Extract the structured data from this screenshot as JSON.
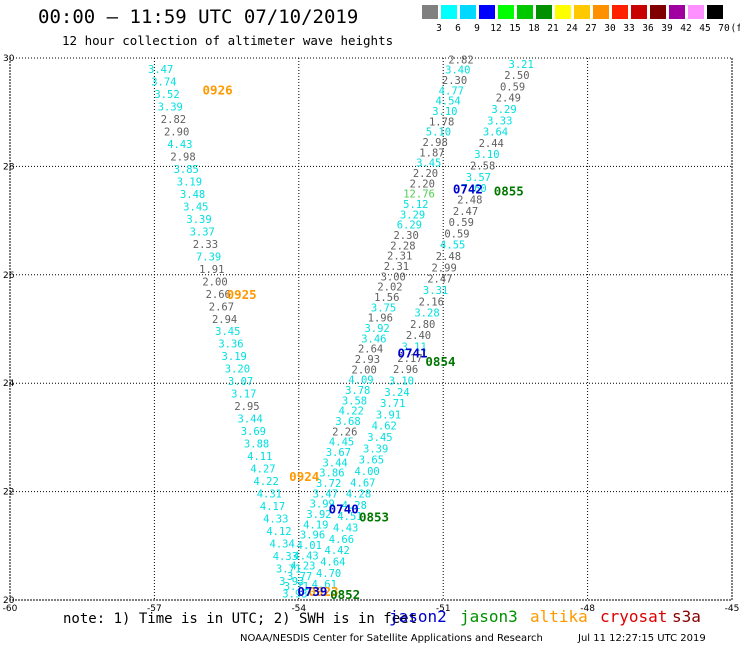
{
  "header": {
    "title": "00:00 – 11:59 UTC 07/10/2019",
    "subtitle": "12 hour collection of altimeter wave heights"
  },
  "scale": {
    "unit": "(ft)",
    "labels": [
      "3",
      "6",
      "9",
      "12",
      "15",
      "18",
      "21",
      "24",
      "27",
      "30",
      "33",
      "36",
      "39",
      "42",
      "45",
      "70"
    ],
    "colors": [
      "#808080",
      "#00ffff",
      "#00d8ff",
      "#0000ff",
      "#00ff00",
      "#00c800",
      "#009000",
      "#ffff00",
      "#ffc800",
      "#ff9000",
      "#ff2000",
      "#c80000",
      "#800000",
      "#a000a0",
      "#ff90ff",
      "#000000"
    ]
  },
  "map": {
    "lon_range": [
      -60,
      -45
    ],
    "lat_range": [
      20,
      30
    ],
    "x_ticks": [
      "-60",
      "-57",
      "-54",
      "-51",
      "-48",
      "-45"
    ],
    "y_ticks": [
      "20",
      "22",
      "24",
      "26",
      "28",
      "30"
    ],
    "track_colors": {
      "cyan": "#00e0e0",
      "gray": "#606060",
      "green": "#50d050"
    },
    "track1": [
      [
        "3.47",
        "c"
      ],
      [
        "3.74",
        "c"
      ],
      [
        "3.52",
        "c"
      ],
      [
        "3.39",
        "c"
      ],
      [
        "2.82",
        "g"
      ],
      [
        "2.90",
        "g"
      ],
      [
        "4.43",
        "c"
      ],
      [
        "2.98",
        "g"
      ],
      [
        "3.85",
        "c"
      ],
      [
        "3.19",
        "c"
      ],
      [
        "3.48",
        "c"
      ],
      [
        "3.45",
        "c"
      ],
      [
        "3.39",
        "c"
      ],
      [
        "3.37",
        "c"
      ],
      [
        "2.33",
        "g"
      ],
      [
        "7.39",
        "c"
      ],
      [
        "1.91",
        "g"
      ],
      [
        "2.00",
        "g"
      ],
      [
        "2.66",
        "g"
      ],
      [
        "2.67",
        "g"
      ],
      [
        "2.94",
        "g"
      ],
      [
        "3.45",
        "c"
      ],
      [
        "3.36",
        "c"
      ],
      [
        "3.19",
        "c"
      ],
      [
        "3.20",
        "c"
      ],
      [
        "3.07",
        "c"
      ],
      [
        "3.17",
        "c"
      ],
      [
        "2.95",
        "g"
      ],
      [
        "3.44",
        "c"
      ],
      [
        "3.69",
        "c"
      ],
      [
        "3.88",
        "c"
      ],
      [
        "4.11",
        "c"
      ],
      [
        "4.27",
        "c"
      ],
      [
        "4.22",
        "c"
      ],
      [
        "4.31",
        "c"
      ],
      [
        "4.17",
        "c"
      ],
      [
        "4.33",
        "c"
      ],
      [
        "4.12",
        "c"
      ],
      [
        "4.34",
        "c"
      ],
      [
        "4.33",
        "c"
      ],
      [
        "3.71",
        "c"
      ],
      [
        "3.93",
        "c"
      ],
      [
        "3.93",
        "c"
      ]
    ],
    "track2": [
      [
        "2.82",
        "g"
      ],
      [
        "3.40",
        "c"
      ],
      [
        "2.30",
        "g"
      ],
      [
        "4.77",
        "c"
      ],
      [
        "4.54",
        "c"
      ],
      [
        "3.10",
        "c"
      ],
      [
        "1.78",
        "g"
      ],
      [
        "5.10",
        "c"
      ],
      [
        "2.98",
        "g"
      ],
      [
        "1.87",
        "g"
      ],
      [
        "3.45",
        "c"
      ],
      [
        "2.20",
        "g"
      ],
      [
        "2.20",
        "g"
      ],
      [
        "12.76",
        "l"
      ],
      [
        "5.12",
        "c"
      ],
      [
        "3.29",
        "c"
      ],
      [
        "6.29",
        "c"
      ],
      [
        "2.30",
        "g"
      ],
      [
        "2.28",
        "g"
      ],
      [
        "2.31",
        "g"
      ],
      [
        "2.31",
        "g"
      ],
      [
        "3.00",
        "g"
      ],
      [
        "2.02",
        "g"
      ],
      [
        "1.56",
        "g"
      ],
      [
        "3.75",
        "c"
      ],
      [
        "1.96",
        "g"
      ],
      [
        "3.92",
        "c"
      ],
      [
        "3.46",
        "c"
      ],
      [
        "2.64",
        "g"
      ],
      [
        "2.93",
        "g"
      ],
      [
        "2.00",
        "g"
      ],
      [
        "4.09",
        "c"
      ],
      [
        "3.78",
        "c"
      ],
      [
        "3.58",
        "c"
      ],
      [
        "4.22",
        "c"
      ],
      [
        "3.68",
        "c"
      ],
      [
        "2.26",
        "g"
      ],
      [
        "4.45",
        "c"
      ],
      [
        "3.67",
        "c"
      ],
      [
        "3.44",
        "c"
      ],
      [
        "3.86",
        "c"
      ],
      [
        "3.72",
        "c"
      ],
      [
        "3.47",
        "c"
      ],
      [
        "3.99",
        "c"
      ],
      [
        "3.92",
        "c"
      ],
      [
        "4.19",
        "c"
      ],
      [
        "3.96",
        "c"
      ],
      [
        "4.01",
        "c"
      ],
      [
        "4.43",
        "c"
      ],
      [
        "4.23",
        "c"
      ],
      [
        "3.77",
        "c"
      ],
      [
        "3.71",
        "c"
      ]
    ],
    "track3": [
      [
        "3.21",
        "c"
      ],
      [
        "2.50",
        "g"
      ],
      [
        "0.59",
        "g"
      ],
      [
        "2.49",
        "g"
      ],
      [
        "3.29",
        "c"
      ],
      [
        "3.33",
        "c"
      ],
      [
        "3.64",
        "c"
      ],
      [
        "2.44",
        "g"
      ],
      [
        "3.10",
        "c"
      ],
      [
        "2.58",
        "g"
      ],
      [
        "3.57",
        "c"
      ],
      [
        "7.60",
        "c"
      ],
      [
        "2.48",
        "g"
      ],
      [
        "2.47",
        "g"
      ],
      [
        "0.59",
        "g"
      ],
      [
        "0.59",
        "g"
      ],
      [
        "4.55",
        "c"
      ],
      [
        "2.48",
        "g"
      ],
      [
        "2.99",
        "g"
      ],
      [
        "2.47",
        "g"
      ],
      [
        "3.31",
        "c"
      ],
      [
        "2.16",
        "g"
      ],
      [
        "3.28",
        "c"
      ],
      [
        "2.80",
        "g"
      ],
      [
        "2.40",
        "g"
      ],
      [
        "3.11",
        "c"
      ],
      [
        "2.17",
        "g"
      ],
      [
        "2.96",
        "g"
      ],
      [
        "3.10",
        "c"
      ],
      [
        "3.24",
        "c"
      ],
      [
        "3.71",
        "c"
      ],
      [
        "3.91",
        "c"
      ],
      [
        "4.62",
        "c"
      ],
      [
        "3.45",
        "c"
      ],
      [
        "3.39",
        "c"
      ],
      [
        "3.65",
        "c"
      ],
      [
        "4.00",
        "c"
      ],
      [
        "4.67",
        "c"
      ],
      [
        "4.28",
        "c"
      ],
      [
        "4.28",
        "c"
      ],
      [
        "4.51",
        "c"
      ],
      [
        "4.43",
        "c"
      ],
      [
        "4.66",
        "c"
      ],
      [
        "4.42",
        "c"
      ],
      [
        "4.64",
        "c"
      ],
      [
        "4.70",
        "c"
      ],
      [
        "4.61",
        "c"
      ]
    ],
    "time_labels": [
      {
        "text": "0926",
        "color": "#ff9900",
        "lon": -56.0,
        "lat": 29.33
      },
      {
        "text": "0925",
        "color": "#ff9900",
        "lon": -55.5,
        "lat": 25.55
      },
      {
        "text": "0924",
        "color": "#ff9900",
        "lon": -54.2,
        "lat": 22.2
      },
      {
        "text": "0923",
        "color": "#ff9900",
        "lon": -53.8,
        "lat": 20.07
      },
      {
        "text": "0742",
        "color": "#0000cc",
        "lon": -50.8,
        "lat": 27.5
      },
      {
        "text": "0741",
        "color": "#0000cc",
        "lon": -51.95,
        "lat": 24.47
      },
      {
        "text": "0740",
        "color": "#0000cc",
        "lon": -53.38,
        "lat": 21.6
      },
      {
        "text": "0739",
        "color": "#0000cc",
        "lon": -54.03,
        "lat": 20.07
      },
      {
        "text": "0855",
        "color": "#007700",
        "lon": -49.95,
        "lat": 27.46
      },
      {
        "text": "0854",
        "color": "#007700",
        "lon": -51.37,
        "lat": 24.32
      },
      {
        "text": "0853",
        "color": "#007700",
        "lon": -52.75,
        "lat": 21.45
      },
      {
        "text": "0852",
        "color": "#007700",
        "lon": -53.35,
        "lat": 20.02
      }
    ]
  },
  "footer": {
    "note": "note: 1) Time is in UTC; 2) SWH is in feet",
    "missions": [
      {
        "name": "jason2",
        "color": "#0000cc",
        "left": 389
      },
      {
        "name": "jason3",
        "color": "#009000",
        "left": 460
      },
      {
        "name": "altika",
        "color": "#ff9900",
        "left": 530
      },
      {
        "name": "cryosat",
        "color": "#dd0000",
        "left": 600
      },
      {
        "name": "s3a",
        "color": "#880000",
        "left": 672
      }
    ],
    "credit": "NOAA/NESDIS Center for Satellite Applications and Research",
    "stamp": "Jul 11 12:27:15 UTC 2019"
  }
}
